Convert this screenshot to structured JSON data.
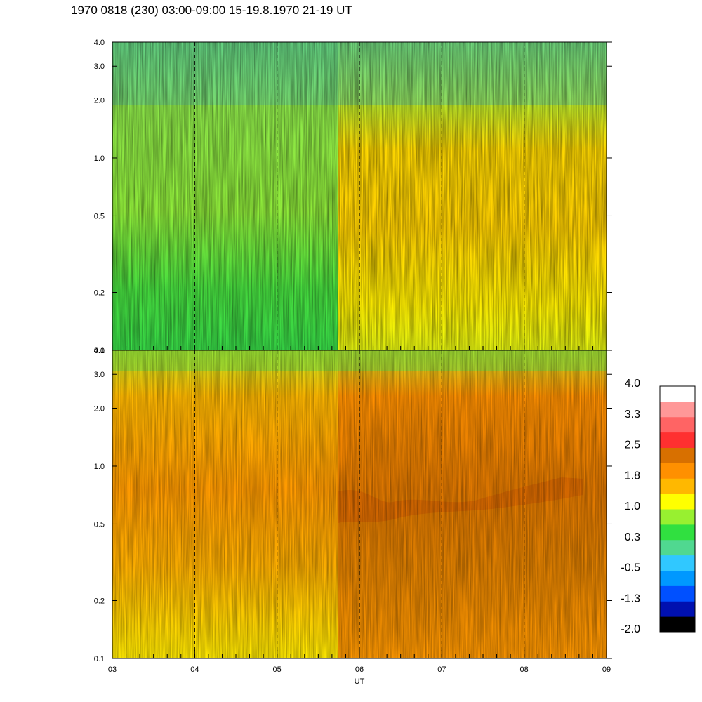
{
  "title": "1970 0818 (230) 03:00-09:00 15-19.8.1970  21-19 UT",
  "chart_data": [
    {
      "type": "heatmap",
      "panel": "upper",
      "x_ticks": [
        "03",
        "04",
        "05",
        "06",
        "07",
        "08",
        "09"
      ],
      "x_range": [
        3,
        9
      ],
      "y_ticks": [
        "0.1",
        "0.2",
        "0.5",
        "1.0",
        "2.0",
        "3.0",
        "4.0"
      ],
      "y_range": [
        0.1,
        4.0
      ],
      "y_scale": "log",
      "dashed_vertical_lines_at": [
        4,
        5,
        6,
        7,
        8
      ],
      "dominant_levels": "green to blue-green before 05.7 UT; yellow to orange after 05.7 UT"
    },
    {
      "type": "heatmap",
      "panel": "lower",
      "x_ticks": [
        "03",
        "04",
        "05",
        "06",
        "07",
        "08",
        "09"
      ],
      "x_range": [
        3,
        9
      ],
      "xlabel": "UT",
      "y_ticks": [
        "0.1",
        "0.2",
        "0.5",
        "1.0",
        "2.0",
        "3.0",
        "4.0"
      ],
      "y_range": [
        0.1,
        4.0
      ],
      "y_scale": "log",
      "dashed_vertical_lines_at": [
        4,
        5,
        6,
        7,
        8
      ],
      "dominant_levels": "yellow to orange before 05.7 UT; orange to dark orange after 05.7 UT, with a dark-orange band near 0.6-0.9"
    }
  ],
  "colorbar": {
    "labels": [
      "4.0",
      "3.3",
      "2.5",
      "1.8",
      "1.0",
      "0.3",
      "-0.5",
      "-1.3",
      "-2.0"
    ],
    "colors": [
      "#000000",
      "#0010b0",
      "#0050ff",
      "#0098ff",
      "#30c8ff",
      "#50d890",
      "#30e040",
      "#98f030",
      "#ffff00",
      "#ffb800",
      "#ff9000",
      "#d87000",
      "#ff3030",
      "#ff6464",
      "#ff9898",
      "#ffffff"
    ]
  }
}
